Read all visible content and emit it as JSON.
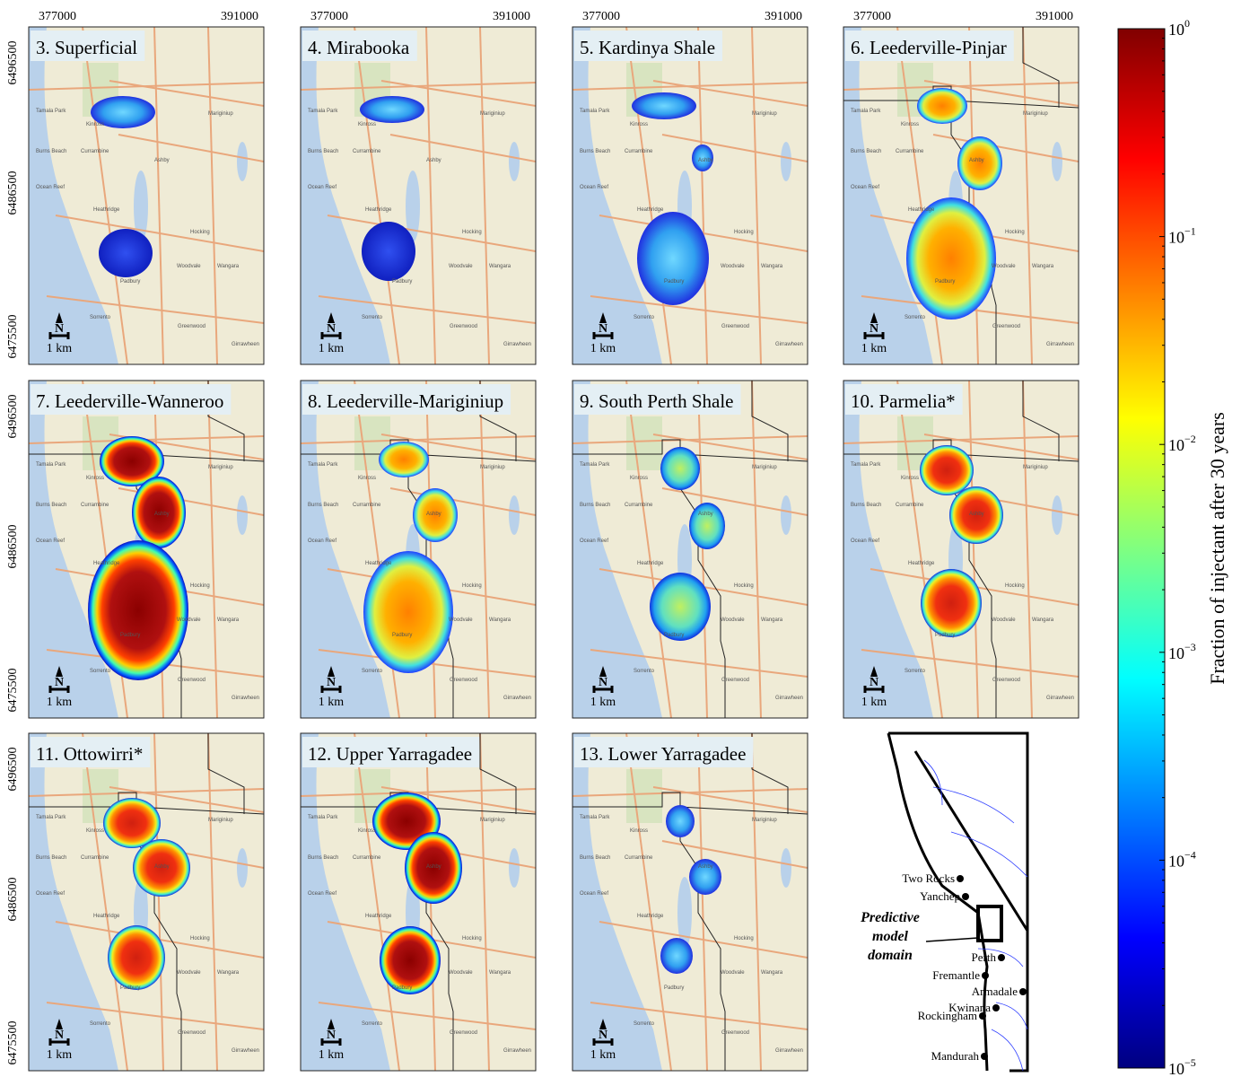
{
  "panels": [
    {
      "title": "3. Superficial"
    },
    {
      "title": "4. Mirabooka"
    },
    {
      "title": "5. Kardinya Shale"
    },
    {
      "title": "6. Leederville-Pinjar"
    },
    {
      "title": "7. Leederville-Wanneroo"
    },
    {
      "title": "8. Leederville-Mariginiup"
    },
    {
      "title": "9. South Perth Shale"
    },
    {
      "title": "10. Parmelia*"
    },
    {
      "title": "11. Ottowirri*"
    },
    {
      "title": "12. Upper Yarragadee"
    },
    {
      "title": "13. Lower Yarragadee"
    }
  ],
  "x_ticks": [
    "377000",
    "391000"
  ],
  "y_ticks": [
    "6496500",
    "6486500",
    "6475500"
  ],
  "scale_bar": {
    "north": "N",
    "length": "1 km"
  },
  "place_labels": [
    "Tamala Park",
    "Kinross",
    "Burns Beach",
    "Currambine",
    "Ocean Reef",
    "Heathridge",
    "Hocking",
    "Woodvale",
    "Wangara",
    "Padbury",
    "Sorrento",
    "Greenwood",
    "Girrawheen",
    "Mariginiup",
    "Ashby"
  ],
  "colorbar": {
    "label": "Fraction of injectant after 30 years",
    "ticks": [
      {
        "base": "10",
        "exponent": "0"
      },
      {
        "base": "10",
        "exponent": "−1"
      },
      {
        "base": "10",
        "exponent": "−2"
      },
      {
        "base": "10",
        "exponent": "−3"
      },
      {
        "base": "10",
        "exponent": "−4"
      },
      {
        "base": "10",
        "exponent": "−5"
      }
    ]
  },
  "inset": {
    "towns": [
      "Two Rocks",
      "Yanchep",
      "Perth",
      "Fremantle",
      "Armadale",
      "Kwinana",
      "Rockingham",
      "Mandurah"
    ],
    "domain_label": [
      "Predictive",
      "model",
      "domain"
    ]
  }
}
